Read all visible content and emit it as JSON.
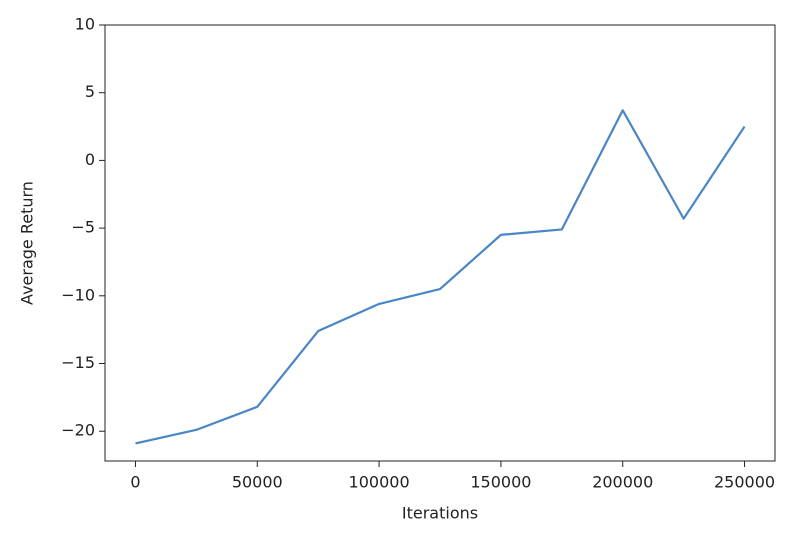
{
  "chart_data": {
    "type": "line",
    "x_label": "Iterations",
    "y_label": "Average Return",
    "x": [
      0,
      25000,
      50000,
      75000,
      100000,
      125000,
      150000,
      175000,
      200000,
      225000,
      250000
    ],
    "series": [
      {
        "name": "Average Return",
        "color": "#4a86c5",
        "values": [
          -20.9,
          -19.9,
          -18.2,
          -12.6,
          -10.6,
          -9.5,
          -5.5,
          -5.1,
          3.7,
          -4.3,
          2.5
        ]
      }
    ],
    "xlim": [
      -12500,
      262500
    ],
    "xticks": [
      0,
      50000,
      100000,
      150000,
      200000,
      250000
    ],
    "ylim": [
      -22.2,
      10
    ],
    "yticks": [
      {
        "value": -20,
        "label": "−20"
      },
      {
        "value": -15,
        "label": "−15"
      },
      {
        "value": -10,
        "label": "−10"
      },
      {
        "value": -5,
        "label": "−5"
      },
      0,
      5,
      10
    ],
    "grid": false,
    "legend": false
  }
}
